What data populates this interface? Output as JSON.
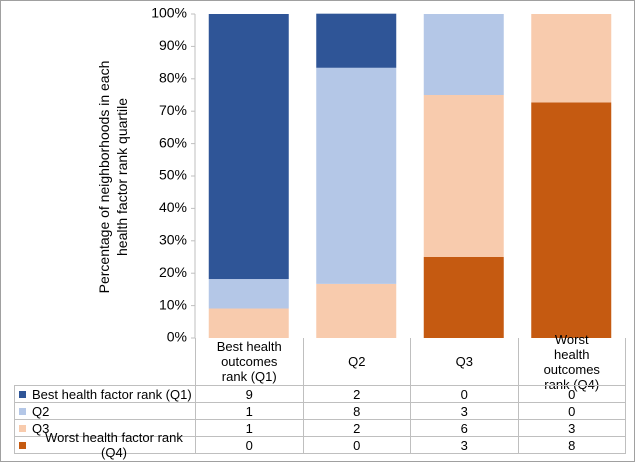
{
  "chart_data": {
    "type": "stacked_bar",
    "y_axis_label": "Percentage of neighborhoods in each health factor rank quartile",
    "categories": [
      "Best health outcomes rank (Q1)",
      "Q2",
      "Q3",
      "Worst health outcomes rank (Q4)"
    ],
    "series": [
      {
        "name": "Best health factor rank (Q1)",
        "color": "#2f5597",
        "values": [
          81.8,
          16.7,
          0,
          0
        ]
      },
      {
        "name": "Q2",
        "color": "#b4c7e7",
        "values": [
          9.1,
          66.7,
          25,
          0
        ]
      },
      {
        "name": "Q3",
        "color": "#f8cbad",
        "values": [
          9.1,
          16.7,
          50,
          27.3
        ]
      },
      {
        "name": "Worst health factor rank (Q4)",
        "color": "#c55a11",
        "values": [
          0,
          0,
          25,
          72.7
        ]
      }
    ],
    "data_table": {
      "rows": [
        [
          9,
          2,
          0,
          0
        ],
        [
          1,
          8,
          3,
          0
        ],
        [
          1,
          2,
          6,
          3
        ],
        [
          0,
          0,
          3,
          8
        ]
      ]
    },
    "ylim": [
      0,
      100
    ],
    "yticks": [
      {
        "value": 0,
        "label": "0%"
      },
      {
        "value": 10,
        "label": "10%"
      },
      {
        "value": 20,
        "label": "20%"
      },
      {
        "value": 30,
        "label": "30%"
      },
      {
        "value": 40,
        "label": "40%"
      },
      {
        "value": 50,
        "label": "50%"
      },
      {
        "value": 60,
        "label": "60%"
      },
      {
        "value": 70,
        "label": "70%"
      },
      {
        "value": 80,
        "label": "80%"
      },
      {
        "value": 90,
        "label": "90%"
      },
      {
        "value": 100,
        "label": "100%"
      }
    ]
  }
}
